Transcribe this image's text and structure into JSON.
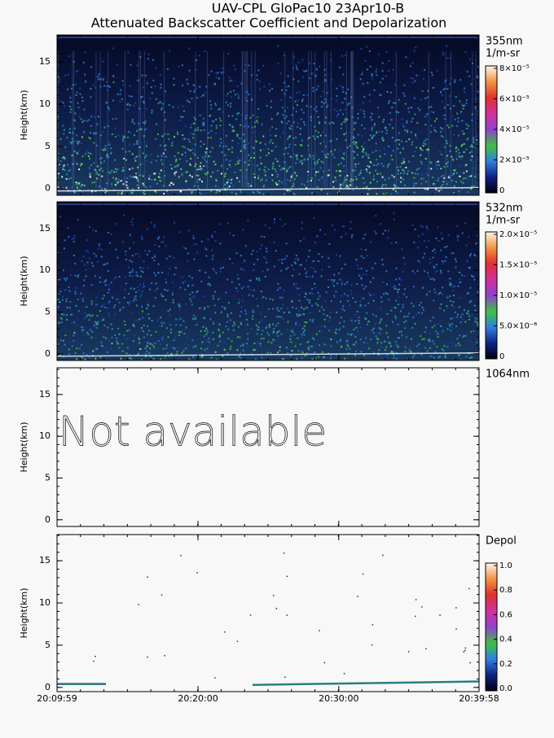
{
  "title": [
    "UAV-CPL GloPac10 23Apr10-B",
    "Attenuated Backscatter Coefficient and Depolarization"
  ],
  "time_labels": [
    "20:09:59",
    "20:20:00",
    "20:30:00",
    "20:39:58"
  ],
  "chart_data": [
    {
      "type": "heatmap",
      "label": "355nm",
      "units": "1/m-sr",
      "ylabel": "Height(km)",
      "ylim": [
        -0.8,
        18.2
      ],
      "yticks": [
        0,
        5,
        10,
        15
      ],
      "colorbar": {
        "lim": [
          0,
          8e-05
        ],
        "ticks": [
          {
            "value": 0,
            "label": "0"
          },
          {
            "value": 2e-05,
            "label": "2×10⁻⁵"
          },
          {
            "value": 4e-05,
            "label": "4×10⁻⁵"
          },
          {
            "value": 6e-05,
            "label": "6×10⁻⁵"
          },
          {
            "value": 8e-05,
            "label": "8×10⁻⁵"
          }
        ]
      }
    },
    {
      "type": "heatmap",
      "label": "532nm",
      "units": "1/m-sr",
      "ylabel": "Height(km)",
      "ylim": [
        -0.8,
        18.2
      ],
      "yticks": [
        0,
        5,
        10,
        15
      ],
      "colorbar": {
        "lim": [
          0,
          2e-05
        ],
        "ticks": [
          {
            "value": 0,
            "label": "0"
          },
          {
            "value": 5e-06,
            "label": "5.0×10⁻⁶"
          },
          {
            "value": 1e-05,
            "label": "1.0×10⁻⁵"
          },
          {
            "value": 1.5e-05,
            "label": "1.5×10⁻⁵"
          },
          {
            "value": 2e-05,
            "label": "2.0×10⁻⁵"
          }
        ]
      }
    },
    {
      "type": "empty",
      "label": "1064nm",
      "ylabel": "Height(km)",
      "ylim": [
        -0.8,
        18.2
      ],
      "yticks": [
        0,
        5,
        10,
        15
      ],
      "annotation": "Not available"
    },
    {
      "type": "scatter",
      "label": "Depol",
      "ylabel": "Height(km)",
      "ylim": [
        -0.5,
        18.1
      ],
      "yticks": [
        0,
        5,
        10,
        15
      ],
      "colorbar": {
        "lim": [
          0,
          1
        ],
        "ticks": [
          {
            "value": 0,
            "label": "0.0"
          },
          0.2,
          0.4,
          0.6,
          0.8,
          {
            "value": 1,
            "label": "1.0"
          }
        ]
      }
    }
  ]
}
